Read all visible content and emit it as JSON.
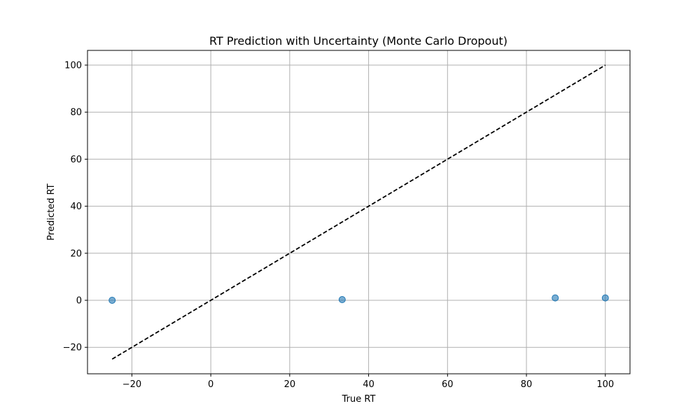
{
  "chart_data": {
    "type": "scatter",
    "title": "RT Prediction with Uncertainty (Monte Carlo Dropout)",
    "xlabel": "True RT",
    "ylabel": "Predicted RT",
    "xlim": [
      -31.25,
      106.25
    ],
    "ylim": [
      -31.25,
      106.25
    ],
    "xticks": [
      -20,
      0,
      20,
      40,
      60,
      80,
      100
    ],
    "yticks": [
      -20,
      0,
      20,
      40,
      60,
      80,
      100
    ],
    "xtick_labels": [
      "−20",
      "0",
      "20",
      "40",
      "60",
      "80",
      "100"
    ],
    "ytick_labels": [
      "−20",
      "0",
      "20",
      "40",
      "60",
      "80",
      "100"
    ],
    "grid": true,
    "series": [
      {
        "points": [
          {
            "x": -25,
            "y": 0
          },
          {
            "x": 33.3,
            "y": 0.3
          },
          {
            "x": 87.3,
            "y": 1
          },
          {
            "x": 100,
            "y": 1
          }
        ],
        "color": "#1f77b4",
        "alpha": 0.6
      }
    ],
    "reference_line": {
      "from": [
        -25,
        -25
      ],
      "to": [
        100,
        100
      ],
      "color": "#000000",
      "style": "dashed"
    }
  }
}
